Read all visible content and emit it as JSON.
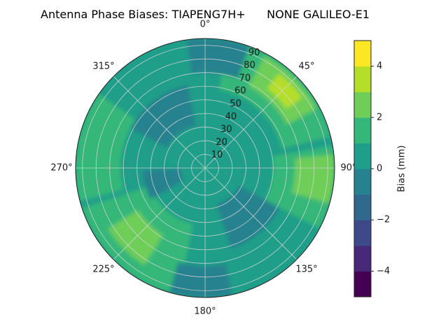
{
  "figure": {
    "title": "Antenna Phase Biases: TIAPENG7H+      NONE GALILEO-E1",
    "background": "#ffffff"
  },
  "chart_data": {
    "type": "polar_filled_contour",
    "title": "Antenna Phase Biases: TIAPENG7H+      NONE GALILEO-E1",
    "angular_axis": {
      "direction": "clockwise",
      "zero_location": "top",
      "tick_angles_deg": [
        0,
        45,
        90,
        135,
        180,
        225,
        270,
        315
      ],
      "tick_labels": [
        "0°",
        "45°",
        "90°",
        "135°",
        "180°",
        "225°",
        "270°",
        "315°"
      ]
    },
    "radial_axis": {
      "tick_values": [
        10,
        20,
        30,
        40,
        50,
        60,
        70,
        80,
        90
      ],
      "tick_labels": [
        "10",
        "20",
        "30",
        "40",
        "50",
        "60",
        "70",
        "80",
        "90"
      ],
      "max": 95,
      "label_angle_deg": 20
    },
    "grid": {
      "visible": true,
      "color": "#d6d6d6"
    },
    "colorbar": {
      "label": "Bias (mm)",
      "tick_values": [
        4,
        2,
        0,
        -2,
        -4
      ],
      "tick_labels": [
        "4",
        "2",
        "0",
        "−2",
        "−4"
      ],
      "range": [
        -5,
        5
      ],
      "colormap": "viridis",
      "band_colors": [
        "#440154",
        "#482878",
        "#3e4989",
        "#31688e",
        "#26828e",
        "#1f9e89",
        "#35b779",
        "#6ece58",
        "#b5de2b",
        "#fde725"
      ]
    },
    "base_bias_mm": [
      0,
      1
    ],
    "regions": [
      {
        "azimuth_deg": [
          10,
          76
        ],
        "zenith_deg": [
          58,
          95
        ],
        "bias_mm": [
          1,
          2
        ]
      },
      {
        "azimuth_deg": [
          28,
          62
        ],
        "zenith_deg": [
          68,
          93
        ],
        "bias_mm": [
          2,
          3
        ]
      },
      {
        "azimuth_deg": [
          38,
          54
        ],
        "zenith_deg": [
          74,
          88
        ],
        "bias_mm": [
          3,
          4
        ]
      },
      {
        "azimuth_deg": [
          80,
          118
        ],
        "zenith_deg": [
          50,
          95
        ],
        "bias_mm": [
          1,
          2
        ]
      },
      {
        "azimuth_deg": [
          84,
          106
        ],
        "zenith_deg": [
          66,
          95
        ],
        "bias_mm": [
          2,
          3
        ]
      },
      {
        "azimuth_deg": [
          192,
          252
        ],
        "zenith_deg": [
          42,
          95
        ],
        "bias_mm": [
          1,
          2
        ]
      },
      {
        "azimuth_deg": [
          212,
          238
        ],
        "zenith_deg": [
          58,
          84
        ],
        "bias_mm": [
          2,
          3
        ]
      },
      {
        "azimuth_deg": [
          255,
          305
        ],
        "zenith_deg": [
          62,
          95
        ],
        "bias_mm": [
          1,
          2
        ]
      },
      {
        "azimuth_deg": [
          118,
          162
        ],
        "zenith_deg": [
          28,
          62
        ],
        "bias_mm": [
          -1,
          0
        ]
      },
      {
        "azimuth_deg": [
          298,
          348
        ],
        "zenith_deg": [
          32,
          62
        ],
        "bias_mm": [
          -1,
          0
        ]
      },
      {
        "azimuth_deg": [
          168,
          196
        ],
        "zenith_deg": [
          72,
          95
        ],
        "bias_mm": [
          -1,
          0
        ]
      },
      {
        "azimuth_deg": [
          352,
          380
        ],
        "zenith_deg": [
          70,
          95
        ],
        "bias_mm": [
          -1,
          0
        ]
      },
      {
        "azimuth_deg": [
          240,
          268
        ],
        "zenith_deg": [
          18,
          46
        ],
        "bias_mm": [
          -1,
          0
        ]
      }
    ]
  }
}
